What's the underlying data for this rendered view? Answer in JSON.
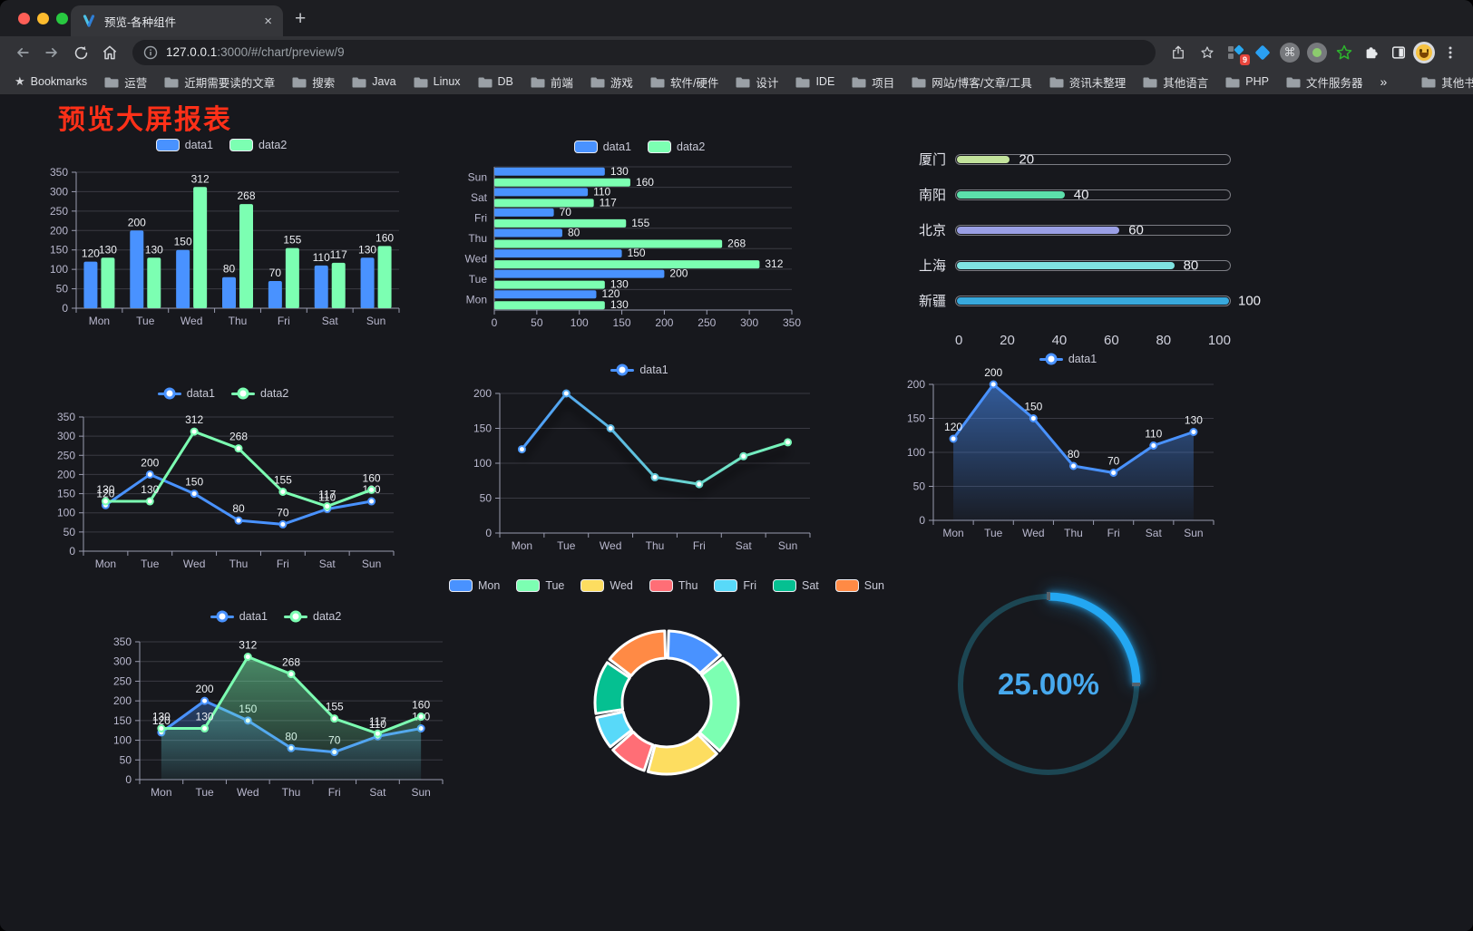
{
  "browser": {
    "tab": {
      "title": "预览-各种组件",
      "close_glyph": "×",
      "new_tab_glyph": "+"
    },
    "url_host": "127.0.0.1",
    "url_rest": ":3000/#/chart/preview/9",
    "bookmarks_label": "Bookmarks",
    "bookmarks": [
      "运营",
      "近期需要读的文章",
      "搜索",
      "Java",
      "Linux",
      "DB",
      "前端",
      "游戏",
      "软件/硬件",
      "设计",
      "IDE",
      "项目",
      "网站/博客/文章/工具",
      "资讯未整理",
      "其他语言",
      "PHP",
      "文件服务器"
    ],
    "bookmarks_overflow_glyph": "»",
    "other_bookmarks_label": "其他书签",
    "extension_badge": "9"
  },
  "page": {
    "title": "预览大屏报表",
    "title_color": "#ff3018",
    "background": "#17181d"
  },
  "chart_data": [
    {
      "id": "c1",
      "type": "bar",
      "categories": [
        "Mon",
        "Tue",
        "Wed",
        "Thu",
        "Fri",
        "Sat",
        "Sun"
      ],
      "series": [
        {
          "name": "data1",
          "color": "#4992ff",
          "values": [
            120,
            200,
            150,
            80,
            70,
            110,
            130
          ]
        },
        {
          "name": "data2",
          "color": "#7cffb2",
          "values": [
            130,
            130,
            312,
            268,
            155,
            117,
            160
          ]
        }
      ],
      "ylim": [
        0,
        350
      ],
      "ytick": 50,
      "labels": true,
      "legend": "top"
    },
    {
      "id": "c2",
      "type": "bar-h",
      "categories": [
        "Sun",
        "Sat",
        "Fri",
        "Thu",
        "Wed",
        "Tue",
        "Mon"
      ],
      "series": [
        {
          "name": "data1",
          "color": "#4992ff",
          "values": [
            130,
            110,
            70,
            80,
            150,
            200,
            120
          ]
        },
        {
          "name": "data2",
          "color": "#7cffb2",
          "values": [
            160,
            117,
            155,
            268,
            312,
            130,
            130
          ]
        }
      ],
      "xlim": [
        0,
        350
      ],
      "xtick": 50,
      "labels": true,
      "legend": "top"
    },
    {
      "id": "c3",
      "type": "capsule",
      "items": [
        {
          "label": "厦门",
          "value": 20,
          "color": "#c3e39c"
        },
        {
          "label": "南阳",
          "value": 40,
          "color": "#5cdfab"
        },
        {
          "label": "北京",
          "value": 60,
          "color": "#9a9fe5"
        },
        {
          "label": "上海",
          "value": 80,
          "color": "#7fe3e2"
        },
        {
          "label": "新疆",
          "value": 100,
          "color": "#38a9dd"
        }
      ],
      "xlim": [
        0,
        100
      ],
      "xticks": [
        0,
        20,
        40,
        60,
        80,
        100
      ]
    },
    {
      "id": "c4",
      "type": "line",
      "categories": [
        "Mon",
        "Tue",
        "Wed",
        "Thu",
        "Fri",
        "Sat",
        "Sun"
      ],
      "series": [
        {
          "name": "data1",
          "color": "#4992ff",
          "values": [
            120,
            200,
            150,
            80,
            70,
            110,
            130
          ]
        },
        {
          "name": "data2",
          "color": "#7cffb2",
          "values": [
            130,
            130,
            312,
            268,
            155,
            117,
            160
          ]
        }
      ],
      "ylim": [
        0,
        350
      ],
      "ytick": 50,
      "labels": true,
      "legend": "top"
    },
    {
      "id": "c5",
      "type": "line",
      "categories": [
        "Mon",
        "Tue",
        "Wed",
        "Thu",
        "Fri",
        "Sat",
        "Sun"
      ],
      "series": [
        {
          "name": "data1",
          "color": [
            "#4992ff",
            "#7cffb2"
          ],
          "values": [
            120,
            200,
            150,
            80,
            70,
            110,
            130
          ]
        }
      ],
      "ylim": [
        0,
        200
      ],
      "ytick": 50,
      "labels": false,
      "shadow": true,
      "legend": "top"
    },
    {
      "id": "c6",
      "type": "line",
      "categories": [
        "Mon",
        "Tue",
        "Wed",
        "Thu",
        "Fri",
        "Sat",
        "Sun"
      ],
      "series": [
        {
          "name": "data1",
          "color": "#4992ff",
          "area": true,
          "values": [
            120,
            200,
            150,
            80,
            70,
            110,
            130
          ]
        }
      ],
      "ylim": [
        0,
        200
      ],
      "ytick": 50,
      "labels": true,
      "legend": "top"
    },
    {
      "id": "c7",
      "type": "line",
      "categories": [
        "Mon",
        "Tue",
        "Wed",
        "Thu",
        "Fri",
        "Sat",
        "Sun"
      ],
      "series": [
        {
          "name": "data1",
          "color": "#4992ff",
          "area": true,
          "values": [
            120,
            200,
            150,
            80,
            70,
            110,
            130
          ]
        },
        {
          "name": "data2",
          "color": "#7cffb2",
          "area": true,
          "values": [
            130,
            130,
            312,
            268,
            155,
            117,
            160
          ]
        }
      ],
      "ylim": [
        0,
        350
      ],
      "ytick": 50,
      "labels": true,
      "legend": "top"
    },
    {
      "id": "c8",
      "type": "pie",
      "items": [
        {
          "label": "Mon",
          "value": 120,
          "color": "#4992ff"
        },
        {
          "label": "Tue",
          "value": 200,
          "color": "#7cffb2"
        },
        {
          "label": "Wed",
          "value": 150,
          "color": "#fddd60"
        },
        {
          "label": "Thu",
          "value": 80,
          "color": "#ff6e76"
        },
        {
          "label": "Fri",
          "value": 70,
          "color": "#58d9f9"
        },
        {
          "label": "Sat",
          "value": 110,
          "color": "#05c091"
        },
        {
          "label": "Sun",
          "value": 130,
          "color": "#ff8a45"
        }
      ],
      "legend": "top"
    },
    {
      "id": "c9",
      "type": "gauge",
      "value": 25,
      "label": "25.00%",
      "color": "#23a7f2",
      "track": "#1c4653",
      "text_color": "#47a9ee"
    }
  ]
}
